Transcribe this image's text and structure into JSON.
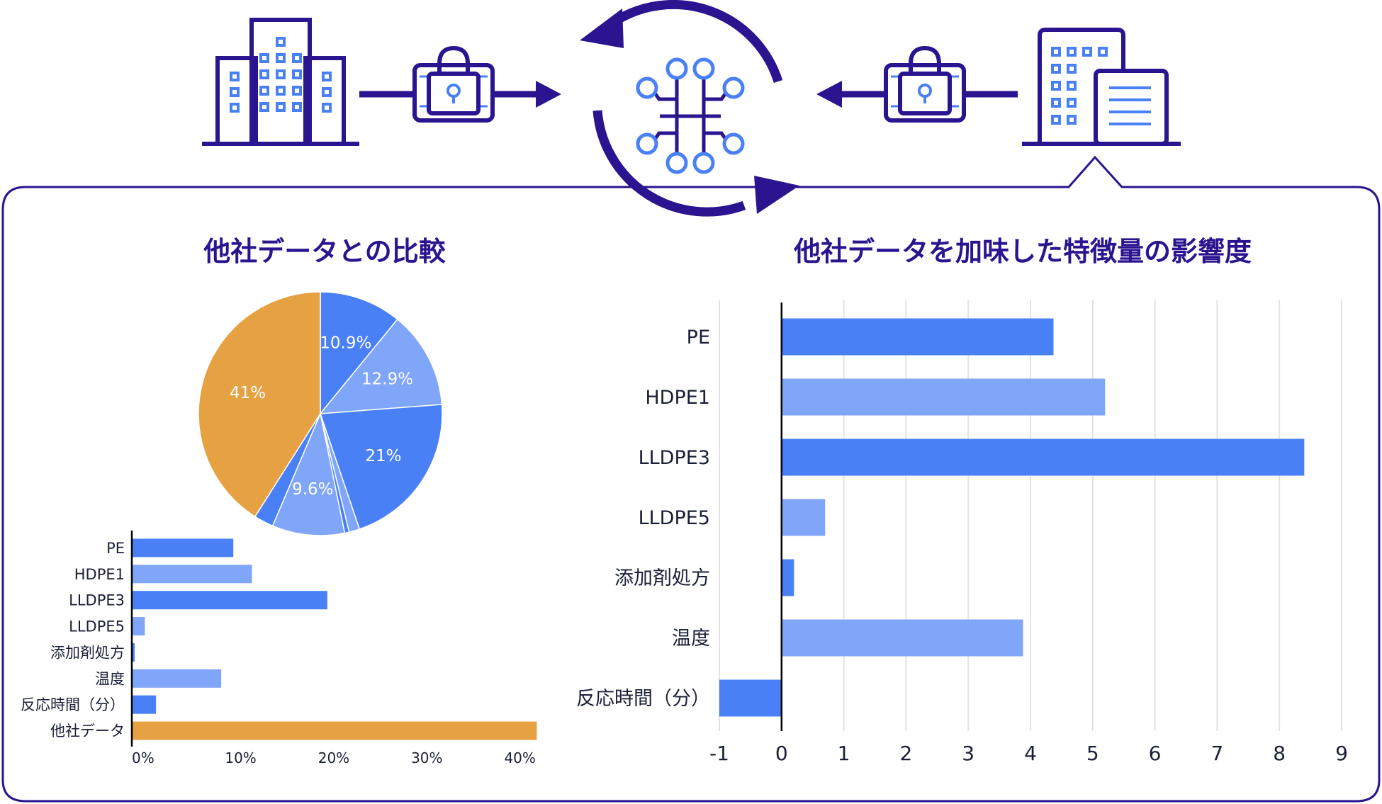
{
  "colors": {
    "frame": "#2a148f",
    "blue": "#4a80f5",
    "light_blue": "#80a6fa",
    "orange": "#e6a143",
    "grid": "#e3e3e3",
    "icon_blue": "#4a80f5"
  },
  "diagram": {
    "icons": [
      "left-office-building-icon",
      "encrypted-data-lock-icon",
      "ai-circuit-icon",
      "sync-cycle-arrows-icon",
      "right-office-building-icon"
    ]
  },
  "left_panel": {
    "title": "他社データとの比較"
  },
  "right_panel": {
    "title": "他社データを加味した特徴量の影響度"
  },
  "chart_data": [
    {
      "type": "pie",
      "labels": [
        "10.9%",
        "12.9%",
        "21%",
        "",
        "",
        "9.6%",
        "",
        "41%"
      ],
      "values": [
        10.9,
        12.9,
        21,
        1.4,
        0.6,
        9.6,
        2.6,
        41
      ],
      "colors": [
        "#4a80f5",
        "#80a6fa",
        "#4a80f5",
        "#80a6fa",
        "#4a80f5",
        "#80a6fa",
        "#4a80f5",
        "#e6a143"
      ]
    },
    {
      "type": "bar",
      "orientation": "horizontal",
      "categories": [
        "PE",
        "HDPE1",
        "LLDPE3",
        "LLDPE5",
        "添加剤処方",
        "温度",
        "反応時間（分）",
        "他社データ"
      ],
      "values": [
        10.9,
        12.9,
        21,
        1.4,
        0.3,
        9.6,
        2.6,
        43.5
      ],
      "colors": [
        "#4a80f5",
        "#80a6fa",
        "#4a80f5",
        "#80a6fa",
        "#4a80f5",
        "#80a6fa",
        "#4a80f5",
        "#e6a143"
      ],
      "xlim": [
        0,
        44
      ],
      "xticks": [
        "0%",
        "10%",
        "20%",
        "30%",
        "40%"
      ],
      "xtick_values": [
        0,
        10,
        20,
        30,
        40
      ],
      "grid": false
    },
    {
      "type": "bar",
      "orientation": "horizontal",
      "categories": [
        "PE",
        "HDPE1",
        "LLDPE3",
        "LLDPE5",
        "添加剤処方",
        "温度",
        "反応時間（分）"
      ],
      "values": [
        4.37,
        5.2,
        8.4,
        0.7,
        0.2,
        3.88,
        -1.0
      ],
      "colors": [
        "#4a80f5",
        "#80a6fa",
        "#4a80f5",
        "#80a6fa",
        "#4a80f5",
        "#80a6fa",
        "#4a80f5"
      ],
      "xlim": [
        -1,
        9
      ],
      "xticks": [
        "-1",
        "0",
        "1",
        "2",
        "3",
        "4",
        "5",
        "6",
        "7",
        "8",
        "9"
      ],
      "xtick_values": [
        -1,
        0,
        1,
        2,
        3,
        4,
        5,
        6,
        7,
        8,
        9
      ],
      "grid": true
    }
  ]
}
